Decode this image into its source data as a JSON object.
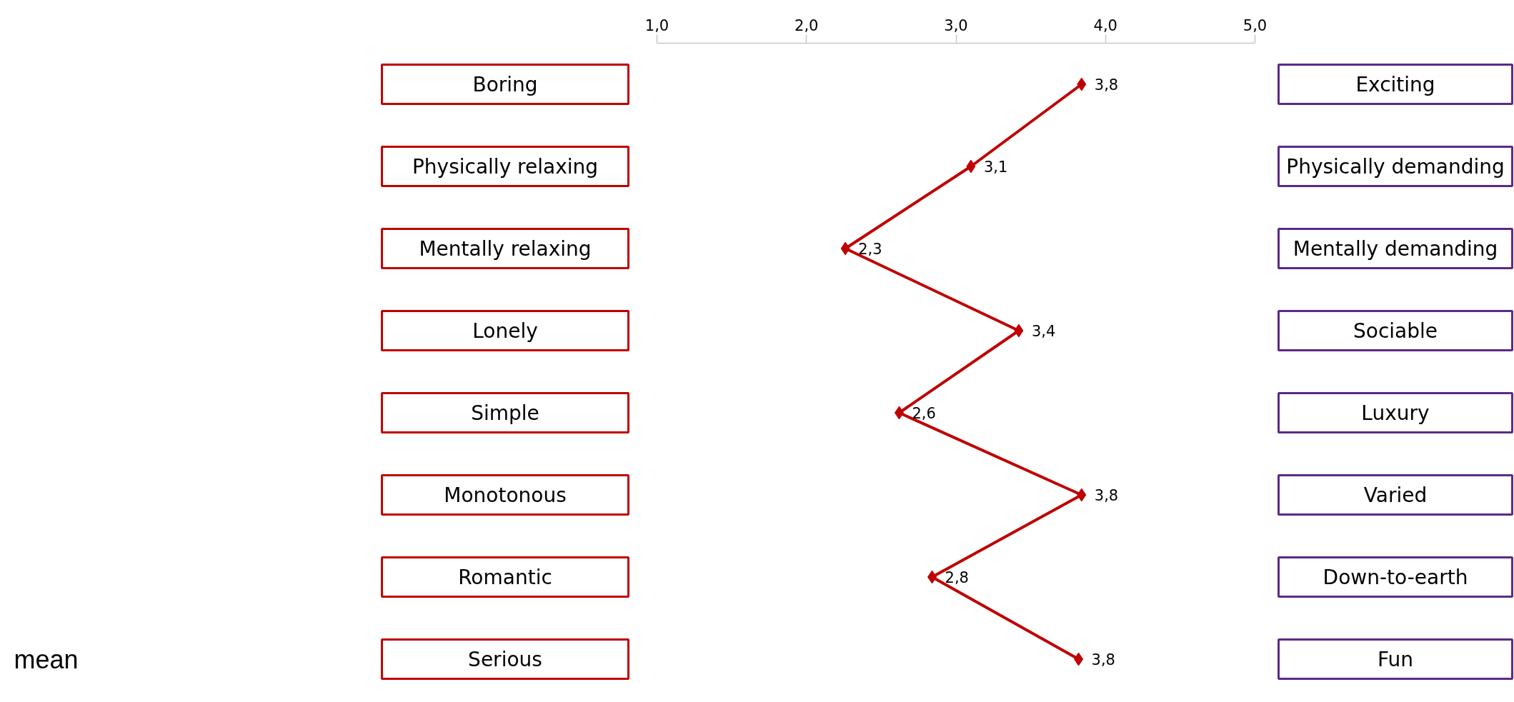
{
  "chart_data": {
    "type": "line",
    "orientation": "horizontal",
    "categories": [
      "Boring",
      "Physically relaxing",
      "Mentally relaxing",
      "Lonely",
      "Simple",
      "Monotonous",
      "Romantic",
      "Serious"
    ],
    "y2_categories": [
      "Exciting",
      "Physically demanding",
      "Mentally demanding",
      "Sociable",
      "Luxury",
      "Varied",
      "Down-to-earth",
      "Fun"
    ],
    "xlim": [
      1,
      5
    ],
    "xticks": [
      {
        "value": 1,
        "label": "1,0"
      },
      {
        "value": 2,
        "label": "2,0"
      },
      {
        "value": 3,
        "label": "3,0"
      },
      {
        "value": 4,
        "label": "4,0"
      },
      {
        "value": 5,
        "label": "5,0"
      }
    ],
    "series": [
      {
        "color": "#c00000",
        "values": [
          3.84,
          3.1,
          2.26,
          3.42,
          2.62,
          3.84,
          2.84,
          3.82
        ],
        "value_labels": [
          "3,8",
          "3,1",
          "2,3",
          "3,4",
          "2,6",
          "3,8",
          "2,8",
          "3,8"
        ]
      }
    ],
    "marker": "diamond",
    "line_style": "solid",
    "grid": false,
    "annotations": [
      "mean"
    ]
  }
}
